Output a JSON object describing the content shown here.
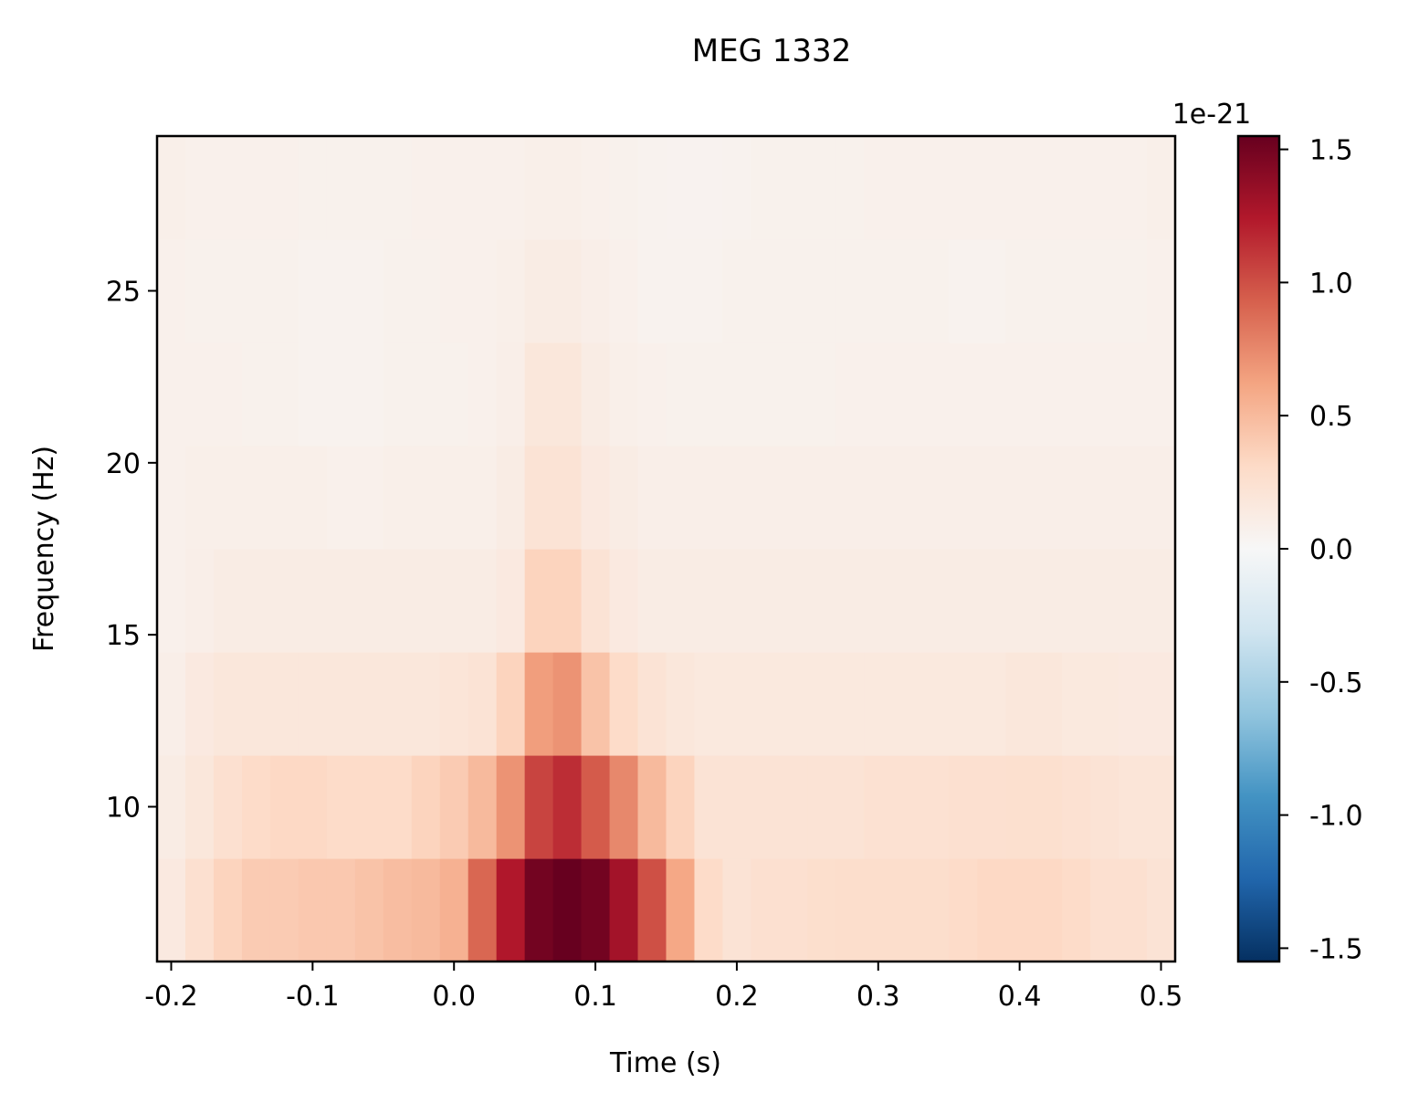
{
  "chart_data": {
    "type": "heatmap",
    "title": "MEG 1332",
    "xlabel": "Time (s)",
    "ylabel": "Frequency (Hz)",
    "xlim": [
      -0.21,
      0.51
    ],
    "ylim": [
      5.5,
      29.5
    ],
    "x_ticks": [
      -0.2,
      -0.1,
      0.0,
      0.1,
      0.2,
      0.3,
      0.4,
      0.5
    ],
    "x_tick_labels": [
      "-0.2",
      "-0.1",
      "0.0",
      "0.1",
      "0.2",
      "0.3",
      "0.4",
      "0.5"
    ],
    "y_ticks": [
      10,
      15,
      20,
      25
    ],
    "y_tick_labels": [
      "10",
      "15",
      "20",
      "25"
    ],
    "colorbar": {
      "colormap": "RdBu_r",
      "vmin": -1.55,
      "vmax": 1.55,
      "scale_label": "1e-21",
      "ticks": [
        -1.5,
        -1.0,
        -0.5,
        0.0,
        0.5,
        1.0,
        1.5
      ],
      "tick_labels": [
        "-1.5",
        "-1.0",
        "-0.5",
        "0.0",
        "0.5",
        "1.0",
        "1.5"
      ]
    },
    "freq_rows": [
      7,
      10,
      13,
      16,
      19,
      22,
      25,
      28
    ],
    "time_cols": [
      -0.2,
      -0.18,
      -0.16,
      -0.14,
      -0.12,
      -0.1,
      -0.08,
      -0.06,
      -0.04,
      -0.02,
      0.0,
      0.02,
      0.04,
      0.06,
      0.08,
      0.1,
      0.12,
      0.14,
      0.16,
      0.18,
      0.2,
      0.22,
      0.24,
      0.26,
      0.28,
      0.3,
      0.32,
      0.34,
      0.36,
      0.38,
      0.4,
      0.42,
      0.44,
      0.46,
      0.48,
      0.5
    ],
    "values": [
      [
        0.15,
        0.25,
        0.35,
        0.4,
        0.4,
        0.42,
        0.42,
        0.45,
        0.48,
        0.5,
        0.55,
        0.9,
        1.25,
        1.5,
        1.55,
        1.5,
        1.3,
        1.0,
        0.6,
        0.3,
        0.22,
        0.25,
        0.25,
        0.27,
        0.28,
        0.28,
        0.28,
        0.28,
        0.3,
        0.32,
        0.32,
        0.32,
        0.3,
        0.25,
        0.25,
        0.22
      ],
      [
        0.12,
        0.18,
        0.25,
        0.3,
        0.32,
        0.32,
        0.3,
        0.3,
        0.3,
        0.35,
        0.4,
        0.5,
        0.7,
        1.05,
        1.15,
        0.95,
        0.75,
        0.5,
        0.35,
        0.22,
        0.22,
        0.22,
        0.22,
        0.22,
        0.22,
        0.24,
        0.24,
        0.24,
        0.25,
        0.25,
        0.26,
        0.26,
        0.24,
        0.22,
        0.2,
        0.2
      ],
      [
        0.1,
        0.15,
        0.18,
        0.18,
        0.18,
        0.18,
        0.18,
        0.18,
        0.18,
        0.18,
        0.2,
        0.22,
        0.35,
        0.65,
        0.7,
        0.45,
        0.3,
        0.22,
        0.18,
        0.16,
        0.16,
        0.16,
        0.16,
        0.16,
        0.16,
        0.16,
        0.16,
        0.16,
        0.16,
        0.16,
        0.18,
        0.18,
        0.16,
        0.16,
        0.15,
        0.15
      ],
      [
        0.08,
        0.1,
        0.12,
        0.12,
        0.12,
        0.12,
        0.12,
        0.12,
        0.12,
        0.12,
        0.12,
        0.12,
        0.15,
        0.35,
        0.35,
        0.22,
        0.15,
        0.12,
        0.12,
        0.12,
        0.12,
        0.12,
        0.12,
        0.12,
        0.12,
        0.12,
        0.12,
        0.12,
        0.12,
        0.12,
        0.12,
        0.12,
        0.12,
        0.12,
        0.12,
        0.12
      ],
      [
        0.08,
        0.09,
        0.09,
        0.09,
        0.09,
        0.09,
        0.08,
        0.08,
        0.09,
        0.09,
        0.09,
        0.09,
        0.12,
        0.22,
        0.22,
        0.15,
        0.12,
        0.1,
        0.1,
        0.1,
        0.1,
        0.1,
        0.1,
        0.1,
        0.1,
        0.1,
        0.1,
        0.1,
        0.1,
        0.1,
        0.1,
        0.1,
        0.1,
        0.1,
        0.1,
        0.1
      ],
      [
        0.08,
        0.08,
        0.08,
        0.07,
        0.07,
        0.06,
        0.06,
        0.06,
        0.07,
        0.07,
        0.07,
        0.08,
        0.1,
        0.18,
        0.18,
        0.12,
        0.09,
        0.08,
        0.07,
        0.07,
        0.07,
        0.07,
        0.07,
        0.07,
        0.08,
        0.08,
        0.08,
        0.08,
        0.08,
        0.08,
        0.08,
        0.08,
        0.08,
        0.08,
        0.08,
        0.08
      ],
      [
        0.08,
        0.07,
        0.07,
        0.07,
        0.07,
        0.06,
        0.06,
        0.06,
        0.07,
        0.07,
        0.08,
        0.08,
        0.09,
        0.12,
        0.12,
        0.1,
        0.08,
        0.06,
        0.06,
        0.06,
        0.07,
        0.07,
        0.07,
        0.07,
        0.07,
        0.07,
        0.07,
        0.07,
        0.06,
        0.06,
        0.07,
        0.07,
        0.07,
        0.07,
        0.07,
        0.08
      ],
      [
        0.09,
        0.08,
        0.08,
        0.08,
        0.08,
        0.07,
        0.07,
        0.07,
        0.07,
        0.08,
        0.08,
        0.08,
        0.08,
        0.09,
        0.09,
        0.08,
        0.07,
        0.06,
        0.05,
        0.05,
        0.06,
        0.07,
        0.07,
        0.07,
        0.07,
        0.08,
        0.08,
        0.08,
        0.08,
        0.08,
        0.08,
        0.08,
        0.08,
        0.08,
        0.08,
        0.09
      ]
    ]
  }
}
